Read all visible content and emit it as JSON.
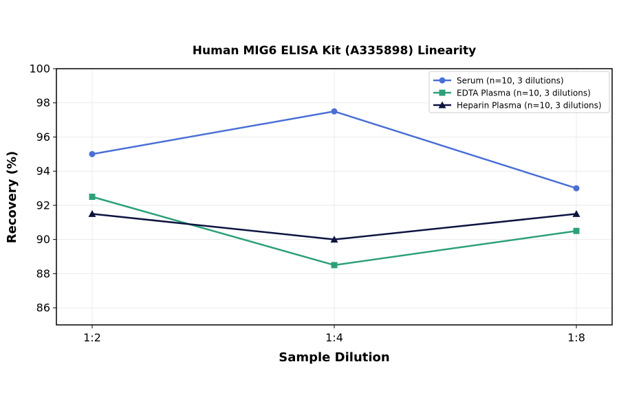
{
  "chart_data": {
    "type": "line",
    "title": "Human MIG6 ELISA Kit (A335898) Linearity",
    "xlabel": "Sample Dilution",
    "ylabel": "Recovery (%)",
    "categories": [
      "1:2",
      "1:4",
      "1:8"
    ],
    "ylim": [
      85,
      100
    ],
    "yticks": [
      "86",
      "88",
      "90",
      "92",
      "94",
      "96",
      "98",
      "100"
    ],
    "grid": true,
    "legend_position": "top-right",
    "series": [
      {
        "name": "Serum (n=10, 3 dilutions)",
        "values": [
          95.0,
          97.5,
          93.0
        ],
        "color": "#4A6FD6",
        "marker": "circle"
      },
      {
        "name": "EDTA Plasma (n=10, 3 dilutions)",
        "values": [
          92.5,
          88.5,
          90.5
        ],
        "color": "#2CA07A",
        "marker": "square"
      },
      {
        "name": "Heparin Plasma (n=10, 3 dilutions)",
        "values": [
          91.5,
          90.0,
          91.5
        ],
        "color": "#0D1440",
        "marker": "triangle"
      }
    ]
  }
}
